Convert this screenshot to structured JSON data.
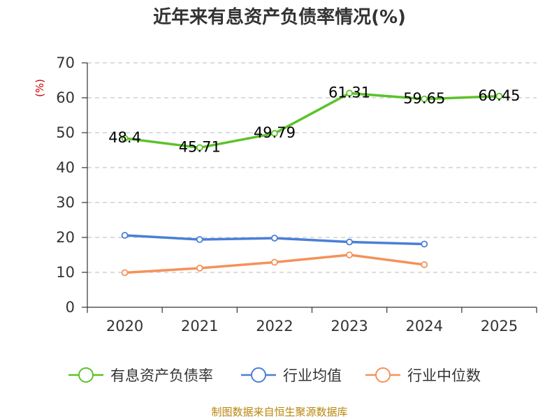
{
  "chart_data": {
    "type": "line",
    "title": "近年来有息资产负债率情况(%)",
    "ylabel": "(%)",
    "xlabel": "",
    "categories": [
      "2020",
      "2021",
      "2022",
      "2023",
      "2024",
      "2025"
    ],
    "ylim": [
      0,
      70
    ],
    "yticks": [
      0,
      10,
      20,
      30,
      40,
      50,
      60,
      70
    ],
    "grid": true,
    "legend_position": "bottom",
    "series": [
      {
        "name": "有息资产负债率",
        "color": "#5dc22b",
        "values": [
          48.4,
          45.71,
          49.79,
          61.31,
          59.65,
          60.45
        ],
        "labels": [
          "48.4",
          "45.71",
          "49.79",
          "61.31",
          "59.65",
          "60.45"
        ]
      },
      {
        "name": "行业均值",
        "color": "#4a7fd6",
        "values": [
          20.6,
          19.4,
          19.8,
          18.7,
          18.1,
          null
        ]
      },
      {
        "name": "行业中位数",
        "color": "#f5915a",
        "values": [
          9.9,
          11.2,
          12.9,
          15.0,
          12.2,
          null
        ]
      }
    ]
  },
  "source": "制图数据来自恒生聚源数据库"
}
